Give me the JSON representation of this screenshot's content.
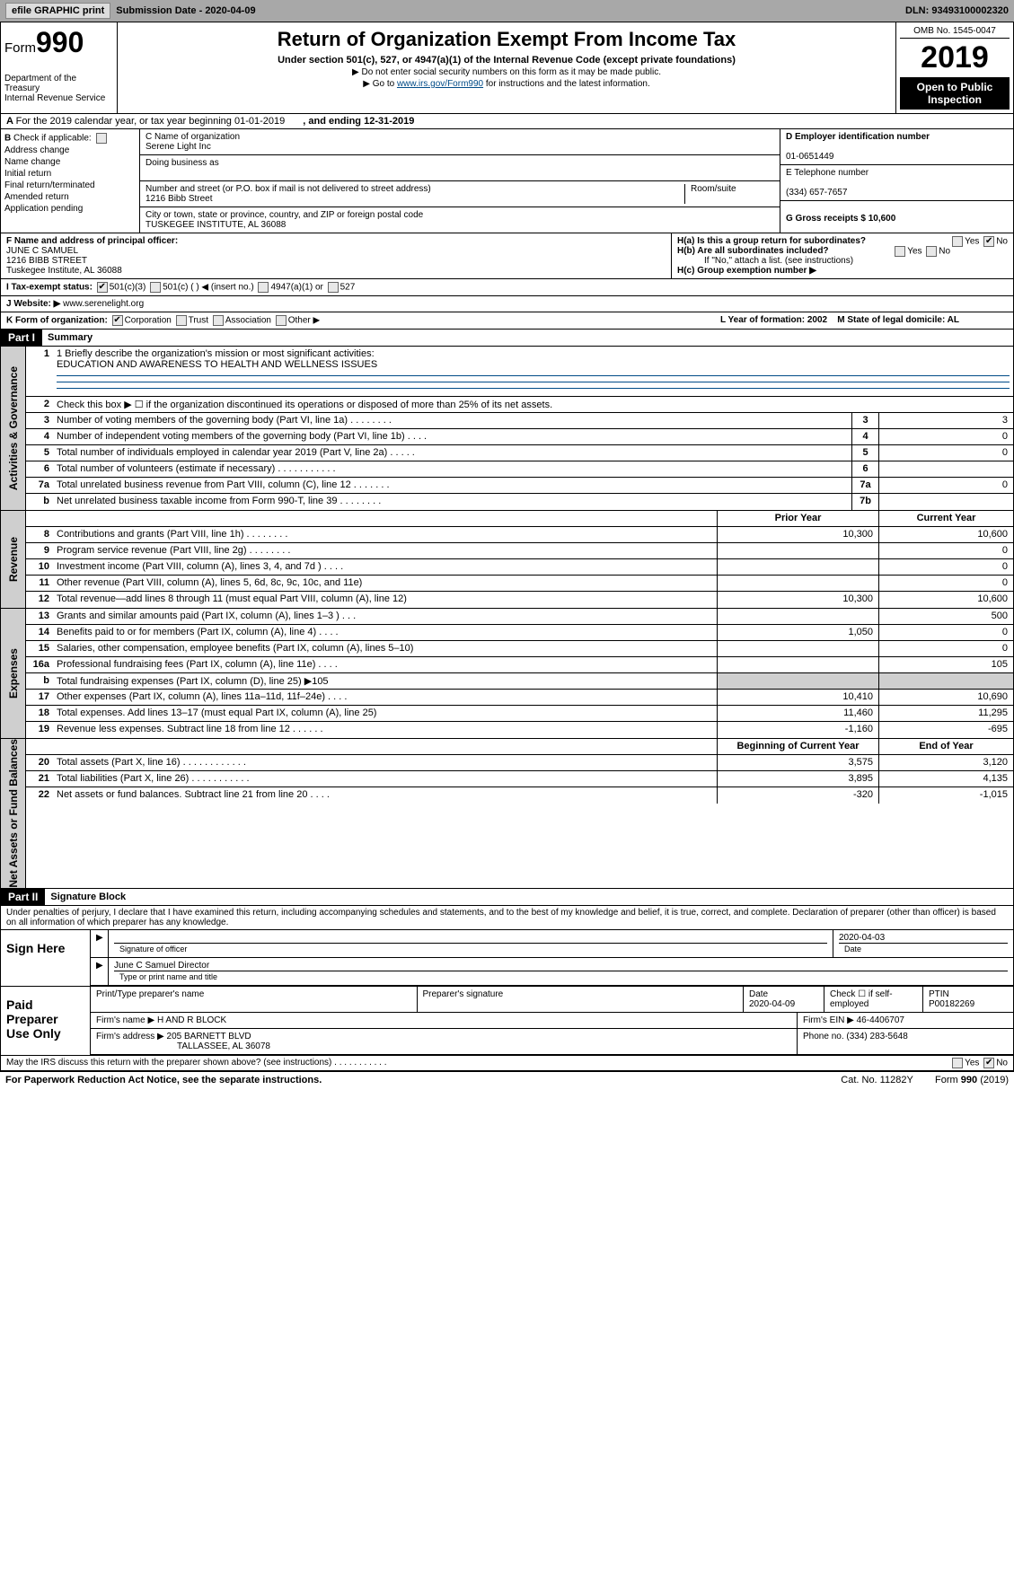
{
  "topbar": {
    "efile": "efile GRAPHIC print",
    "submission_label": "Submission Date - 2020-04-09",
    "dln": "DLN: 93493100002320"
  },
  "header": {
    "form_prefix": "Form",
    "form_number": "990",
    "title": "Return of Organization Exempt From Income Tax",
    "subtitle": "Under section 501(c), 527, or 4947(a)(1) of the Internal Revenue Code (except private foundations)",
    "note1": "▶ Do not enter social security numbers on this form as it may be made public.",
    "note2_pre": "▶ Go to ",
    "note2_link": "www.irs.gov/Form990",
    "note2_post": " for instructions and the latest information.",
    "dept": "Department of the Treasury\nInternal Revenue Service",
    "omb": "OMB No. 1545-0047",
    "year": "2019",
    "open": "Open to Public Inspection"
  },
  "row_a": {
    "text": "For the 2019 calendar year, or tax year beginning 01-01-2019",
    "ending": ", and ending 12-31-2019"
  },
  "section_b": {
    "header": "Check if applicable:",
    "items": [
      "Address change",
      "Name change",
      "Initial return",
      "Final return/terminated",
      "Amended return",
      "Application pending"
    ]
  },
  "section_c": {
    "name_label": "C Name of organization",
    "name": "Serene Light Inc",
    "dba_label": "Doing business as",
    "dba": "",
    "address_label": "Number and street (or P.O. box if mail is not delivered to street address)",
    "address": "1216 Bibb Street",
    "room_label": "Room/suite",
    "city_label": "City or town, state or province, country, and ZIP or foreign postal code",
    "city": "TUSKEGEE INSTITUTE, AL  36088"
  },
  "section_d": {
    "ein_label": "D Employer identification number",
    "ein": "01-0651449",
    "phone_label": "E Telephone number",
    "phone": "(334) 657-7657",
    "gross_label": "G Gross receipts $ 10,600"
  },
  "section_f": {
    "label": "F  Name and address of principal officer:",
    "name": "JUNE C SAMUEL",
    "street": "1216 BIBB STREET",
    "city": "Tuskegee Institute, AL  36088"
  },
  "section_h": {
    "ha": "H(a)   Is this a group return for subordinates?",
    "hb": "H(b)   Are all subordinates included?",
    "hb_note": "If \"No,\" attach a list. (see instructions)",
    "hc": "H(c)   Group exemption number ▶",
    "yes": "Yes",
    "no": "No"
  },
  "section_i": {
    "label": "I    Tax-exempt status:",
    "c501c3": "501(c)(3)",
    "c501c": "501(c) (  ) ◀ (insert no.)",
    "c4947": "4947(a)(1) or",
    "c527": "527"
  },
  "section_j": {
    "label": "J   Website: ▶",
    "value": "www.serenelight.org"
  },
  "section_k": {
    "label": "K Form of organization:",
    "corp": "Corporation",
    "trust": "Trust",
    "assoc": "Association",
    "other": "Other ▶"
  },
  "section_l": {
    "label": "L Year of formation: 2002"
  },
  "section_m": {
    "label": "M State of legal domicile: AL"
  },
  "part1": {
    "hdr": "Part I",
    "title": "Summary",
    "line1_label": "1  Briefly describe the organization's mission or most significant activities:",
    "line1_value": "EDUCATION AND AWARENESS TO HEALTH AND WELLNESS ISSUES",
    "line2": "Check this box ▶ ☐  if the organization discontinued its operations or disposed of more than 25% of its net assets.",
    "govlines": [
      {
        "n": "3",
        "d": "Number of voting members of the governing body (Part VI, line 1a)   .    .    .    .    .    .    .    .",
        "c": "3",
        "v": "3"
      },
      {
        "n": "4",
        "d": "Number of independent voting members of the governing body (Part VI, line 1b)    .    .    .    .",
        "c": "4",
        "v": "0"
      },
      {
        "n": "5",
        "d": "Total number of individuals employed in calendar year 2019 (Part V, line 2a)    .    .    .    .    .",
        "c": "5",
        "v": "0"
      },
      {
        "n": "6",
        "d": "Total number of volunteers (estimate if necessary)    .    .    .    .    .    .    .    .    .    .    .",
        "c": "6",
        "v": ""
      },
      {
        "n": "7a",
        "d": "Total unrelated business revenue from Part VIII, column (C), line 12    .    .    .    .    .    .    .",
        "c": "7a",
        "v": "0"
      },
      {
        "n": "b",
        "d": "Net unrelated business taxable income from Form 990-T, line 39    .    .    .    .    .    .    .    .",
        "c": "7b",
        "v": ""
      }
    ],
    "prior_hdr": "Prior Year",
    "current_hdr": "Current Year",
    "revlines": [
      {
        "n": "8",
        "d": "Contributions and grants (Part VIII, line 1h)    .    .    .    .    .    .    .    .",
        "p": "10,300",
        "c": "10,600"
      },
      {
        "n": "9",
        "d": "Program service revenue (Part VIII, line 2g)    .    .    .    .    .    .    .    .",
        "p": "",
        "c": "0"
      },
      {
        "n": "10",
        "d": "Investment income (Part VIII, column (A), lines 3, 4, and 7d )    .    .    .    .",
        "p": "",
        "c": "0"
      },
      {
        "n": "11",
        "d": "Other revenue (Part VIII, column (A), lines 5, 6d, 8c, 9c, 10c, and 11e)",
        "p": "",
        "c": "0"
      },
      {
        "n": "12",
        "d": "Total revenue—add lines 8 through 11 (must equal Part VIII, column (A), line 12)",
        "p": "10,300",
        "c": "10,600"
      }
    ],
    "explines": [
      {
        "n": "13",
        "d": "Grants and similar amounts paid (Part IX, column (A), lines 1–3 )    .    .    .",
        "p": "",
        "c": "500"
      },
      {
        "n": "14",
        "d": "Benefits paid to or for members (Part IX, column (A), line 4)    .    .    .    .",
        "p": "1,050",
        "c": "0"
      },
      {
        "n": "15",
        "d": "Salaries, other compensation, employee benefits (Part IX, column (A), lines 5–10)",
        "p": "",
        "c": "0"
      },
      {
        "n": "16a",
        "d": "Professional fundraising fees (Part IX, column (A), line 11e)    .    .    .    .",
        "p": "",
        "c": "105"
      },
      {
        "n": "b",
        "d": "Total fundraising expenses (Part IX, column (D), line 25) ▶105",
        "p": "",
        "c": "",
        "grey": true
      },
      {
        "n": "17",
        "d": "Other expenses (Part IX, column (A), lines 11a–11d, 11f–24e)    .    .    .    .",
        "p": "10,410",
        "c": "10,690"
      },
      {
        "n": "18",
        "d": "Total expenses. Add lines 13–17 (must equal Part IX, column (A), line 25)",
        "p": "11,460",
        "c": "11,295"
      },
      {
        "n": "19",
        "d": "Revenue less expenses. Subtract line 18 from line 12    .    .    .    .    .    .",
        "p": "-1,160",
        "c": "-695"
      }
    ],
    "boy_hdr": "Beginning of Current Year",
    "eoy_hdr": "End of Year",
    "netlines": [
      {
        "n": "20",
        "d": "Total assets (Part X, line 16)    .    .    .    .    .    .    .    .    .    .    .    .",
        "p": "3,575",
        "c": "3,120"
      },
      {
        "n": "21",
        "d": "Total liabilities (Part X, line 26)    .    .    .    .    .    .    .    .    .    .    .",
        "p": "3,895",
        "c": "4,135"
      },
      {
        "n": "22",
        "d": "Net assets or fund balances. Subtract line 21 from line 20    .    .    .    .",
        "p": "-320",
        "c": "-1,015"
      }
    ],
    "side_gov": "Activities & Governance",
    "side_rev": "Revenue",
    "side_exp": "Expenses",
    "side_net": "Net Assets or Fund Balances"
  },
  "part2": {
    "hdr": "Part II",
    "title": "Signature Block",
    "perjury": "Under penalties of perjury, I declare that I have examined this return, including accompanying schedules and statements, and to the best of my knowledge and belief, it is true, correct, and complete. Declaration of preparer (other than officer) is based on all information of which preparer has any knowledge.",
    "sign_here": "Sign Here",
    "sig_officer": "Signature of officer",
    "sig_date": "2020-04-03",
    "date_lbl": "Date",
    "officer_name": "June C Samuel  Director",
    "officer_title_lbl": "Type or print name and title",
    "paid": "Paid Preparer Use Only",
    "prep_name_lbl": "Print/Type preparer's name",
    "prep_sig_lbl": "Preparer's signature",
    "prep_date_lbl": "Date",
    "prep_date": "2020-04-09",
    "prep_check": "Check ☐ if self-employed",
    "ptin_lbl": "PTIN",
    "ptin": "P00182269",
    "firm_name_lbl": "Firm's name    ▶",
    "firm_name": "H AND R BLOCK",
    "firm_ein_lbl": "Firm's EIN ▶",
    "firm_ein": "46-4406707",
    "firm_addr_lbl": "Firm's address ▶",
    "firm_addr": "205 BARNETT BLVD",
    "firm_city": "TALLASSEE, AL  36078",
    "firm_phone_lbl": "Phone no.",
    "firm_phone": "(334) 283-5648",
    "discuss": "May the IRS discuss this return with the preparer shown above? (see instructions)    .    .    .    .    .    .    .    .    .    .    .",
    "yes": "Yes",
    "no": "No"
  },
  "footer": {
    "left": "For Paperwork Reduction Act Notice, see the separate instructions.",
    "mid": "Cat. No. 11282Y",
    "right": "Form 990 (2019)"
  }
}
